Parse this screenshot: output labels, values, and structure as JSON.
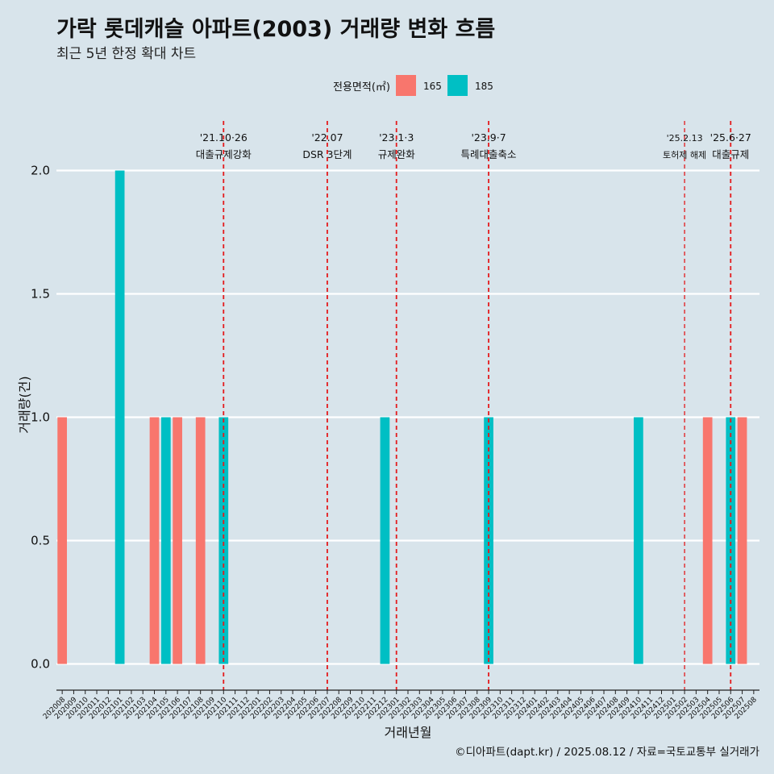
{
  "title": "가락 롯데캐슬 아파트(2003) 거래량 변화 흐름",
  "subtitle": "최근 5년 한정 확대 차트",
  "caption": "©디아파트(dapt.kr) / 2025.08.12 / 자료=국토교통부 실거래가",
  "chart_data": {
    "type": "bar",
    "xlabel": "거래년월",
    "ylabel": "거래량(건)",
    "ylim": [
      0,
      2.0
    ],
    "y_ticks": [
      "0.0",
      "0.5",
      "1.0",
      "1.5",
      "2.0"
    ],
    "legend_title": "전용면적(㎡)",
    "legend_position": "top",
    "grid": "horizontal major lines",
    "categories": [
      "202008",
      "202009",
      "202010",
      "202011",
      "202012",
      "202101",
      "202102",
      "202103",
      "202104",
      "202105",
      "202106",
      "202107",
      "202108",
      "202109",
      "202110",
      "202111",
      "202112",
      "202201",
      "202202",
      "202203",
      "202204",
      "202205",
      "202206",
      "202207",
      "202208",
      "202209",
      "202210",
      "202211",
      "202212",
      "202301",
      "202302",
      "202303",
      "202304",
      "202305",
      "202306",
      "202307",
      "202308",
      "202309",
      "202310",
      "202311",
      "202312",
      "202401",
      "202402",
      "202403",
      "202404",
      "202405",
      "202406",
      "202407",
      "202408",
      "202409",
      "202410",
      "202411",
      "202412",
      "202501",
      "202502",
      "202503",
      "202504",
      "202505",
      "202506",
      "202507",
      "202508"
    ],
    "series": [
      {
        "name": "165",
        "color": "#F8766D",
        "points": [
          {
            "x": "202008",
            "y": 1
          },
          {
            "x": "202104",
            "y": 1
          },
          {
            "x": "202106",
            "y": 1
          },
          {
            "x": "202108",
            "y": 1
          },
          {
            "x": "202504",
            "y": 1
          },
          {
            "x": "202507",
            "y": 1
          }
        ]
      },
      {
        "name": "185",
        "color": "#00BFC4",
        "points": [
          {
            "x": "202101",
            "y": 2
          },
          {
            "x": "202105",
            "y": 1
          },
          {
            "x": "202110",
            "y": 1
          },
          {
            "x": "202212",
            "y": 1
          },
          {
            "x": "202309",
            "y": 1
          },
          {
            "x": "202410",
            "y": 1
          },
          {
            "x": "202506",
            "y": 1
          }
        ]
      }
    ],
    "events": [
      {
        "x": "202110",
        "date": "'21.10·26",
        "label": "대출규제강화"
      },
      {
        "x": "202207",
        "date": "'22.07",
        "label": "DSR 3단계"
      },
      {
        "x": "202301",
        "date": "'23.1·3",
        "label": "규제완화"
      },
      {
        "x": "202309",
        "date": "'23.9·7",
        "label": "특례대출축소"
      },
      {
        "x": "202502",
        "date": "'25.2.13",
        "label": "토허제 해제",
        "small": true
      },
      {
        "x": "202506",
        "date": "'25.6·27",
        "label": "대출규제"
      }
    ],
    "event_line_color": "#e41a1c"
  }
}
